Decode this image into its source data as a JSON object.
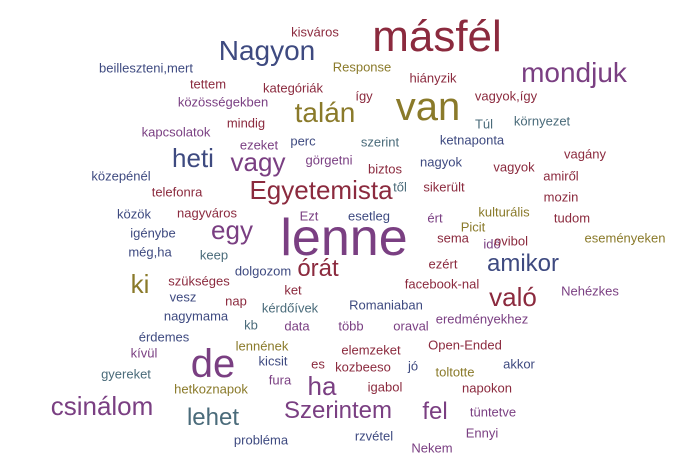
{
  "colors": {
    "red": "#8b2a3e",
    "purple": "#7a3f82",
    "navy": "#3e4a80",
    "olive": "#8a7a2a",
    "teal": "#4a6b7a",
    "plum": "#6a3a6a"
  },
  "words": [
    {
      "text": "lenne",
      "color": "purple"
    },
    {
      "text": "másfél",
      "color": "red"
    },
    {
      "text": "van",
      "color": "olive"
    },
    {
      "text": "de",
      "color": "purple"
    },
    {
      "text": "Nagyon",
      "color": "navy"
    },
    {
      "text": "mondjuk",
      "color": "purple"
    },
    {
      "text": "talán",
      "color": "olive"
    },
    {
      "text": "Egyetemista",
      "color": "red"
    },
    {
      "text": "vagy",
      "color": "purple"
    },
    {
      "text": "heti",
      "color": "navy"
    },
    {
      "text": "egy",
      "color": "purple"
    },
    {
      "text": "amikor",
      "color": "navy"
    },
    {
      "text": "órát",
      "color": "red"
    },
    {
      "text": "való",
      "color": "red"
    },
    {
      "text": "ki",
      "color": "olive"
    },
    {
      "text": "ha",
      "color": "purple"
    },
    {
      "text": "csinálom",
      "color": "purple"
    },
    {
      "text": "lehet",
      "color": "teal"
    },
    {
      "text": "Szerintem",
      "color": "purple"
    },
    {
      "text": "fel",
      "color": "purple"
    },
    {
      "text": "kisváros",
      "color": "red"
    },
    {
      "text": "beilleszteni,mert",
      "color": "navy"
    },
    {
      "text": "Response",
      "color": "olive"
    },
    {
      "text": "tettem",
      "color": "red"
    },
    {
      "text": "kategóriák",
      "color": "red"
    },
    {
      "text": "hiányzik",
      "color": "red"
    },
    {
      "text": "vagyok,így",
      "color": "red"
    },
    {
      "text": "közösségekben",
      "color": "purple"
    },
    {
      "text": "így",
      "color": "red"
    },
    {
      "text": "mindig",
      "color": "red"
    },
    {
      "text": "Túl",
      "color": "teal"
    },
    {
      "text": "környezet",
      "color": "teal"
    },
    {
      "text": "kapcsolatok",
      "color": "purple"
    },
    {
      "text": "szerint",
      "color": "teal"
    },
    {
      "text": "ketnaponta",
      "color": "navy"
    },
    {
      "text": "ezeket",
      "color": "purple"
    },
    {
      "text": "perc",
      "color": "navy"
    },
    {
      "text": "görgetni",
      "color": "purple"
    },
    {
      "text": "biztos",
      "color": "red"
    },
    {
      "text": "nagyok",
      "color": "navy"
    },
    {
      "text": "vagyok",
      "color": "red"
    },
    {
      "text": "vagány",
      "color": "red"
    },
    {
      "text": "közepénél",
      "color": "navy"
    },
    {
      "text": "amiről",
      "color": "red"
    },
    {
      "text": "telefonra",
      "color": "red"
    },
    {
      "text": "től",
      "color": "teal"
    },
    {
      "text": "sikerült",
      "color": "red"
    },
    {
      "text": "mozin",
      "color": "red"
    },
    {
      "text": "közök",
      "color": "navy"
    },
    {
      "text": "nagyváros",
      "color": "red"
    },
    {
      "text": "Ezt",
      "color": "purple"
    },
    {
      "text": "esetleg",
      "color": "navy"
    },
    {
      "text": "ért",
      "color": "purple"
    },
    {
      "text": "kulturális",
      "color": "olive"
    },
    {
      "text": "tudom",
      "color": "red"
    },
    {
      "text": "igénybe",
      "color": "navy"
    },
    {
      "text": "Picit",
      "color": "olive"
    },
    {
      "text": "sema",
      "color": "red"
    },
    {
      "text": "idő",
      "color": "purple"
    },
    {
      "text": "ovibol",
      "color": "red"
    },
    {
      "text": "eseményeken",
      "color": "olive"
    },
    {
      "text": "még,ha",
      "color": "navy"
    },
    {
      "text": "keep",
      "color": "teal"
    },
    {
      "text": "ezért",
      "color": "red"
    },
    {
      "text": "dolgozom",
      "color": "navy"
    },
    {
      "text": "szükséges",
      "color": "red"
    },
    {
      "text": "ket",
      "color": "red"
    },
    {
      "text": "facebook-nal",
      "color": "red"
    },
    {
      "text": "vesz",
      "color": "navy"
    },
    {
      "text": "Nehézkes",
      "color": "purple"
    },
    {
      "text": "nap",
      "color": "red"
    },
    {
      "text": "kérdőívek",
      "color": "teal"
    },
    {
      "text": "Romaniaban",
      "color": "navy"
    },
    {
      "text": "nagymama",
      "color": "navy"
    },
    {
      "text": "kb",
      "color": "teal"
    },
    {
      "text": "data",
      "color": "purple"
    },
    {
      "text": "több",
      "color": "purple"
    },
    {
      "text": "oraval",
      "color": "purple"
    },
    {
      "text": "eredményekhez",
      "color": "purple"
    },
    {
      "text": "érdemes",
      "color": "navy"
    },
    {
      "text": "lennének",
      "color": "olive"
    },
    {
      "text": "elemzeket",
      "color": "red"
    },
    {
      "text": "Open-Ended",
      "color": "red"
    },
    {
      "text": "kívül",
      "color": "purple"
    },
    {
      "text": "kicsit",
      "color": "navy"
    },
    {
      "text": "es",
      "color": "red"
    },
    {
      "text": "kozbeeso",
      "color": "red"
    },
    {
      "text": "jó",
      "color": "navy"
    },
    {
      "text": "akkor",
      "color": "navy"
    },
    {
      "text": "gyereket",
      "color": "teal"
    },
    {
      "text": "fura",
      "color": "purple"
    },
    {
      "text": "toltotte",
      "color": "olive"
    },
    {
      "text": "hetkoznapok",
      "color": "olive"
    },
    {
      "text": "igabol",
      "color": "red"
    },
    {
      "text": "napokon",
      "color": "red"
    },
    {
      "text": "tüntetve",
      "color": "purple"
    },
    {
      "text": "probléma",
      "color": "navy"
    },
    {
      "text": "rzvétel",
      "color": "navy"
    },
    {
      "text": "Ennyi",
      "color": "purple"
    },
    {
      "text": "Nekem",
      "color": "purple"
    }
  ]
}
